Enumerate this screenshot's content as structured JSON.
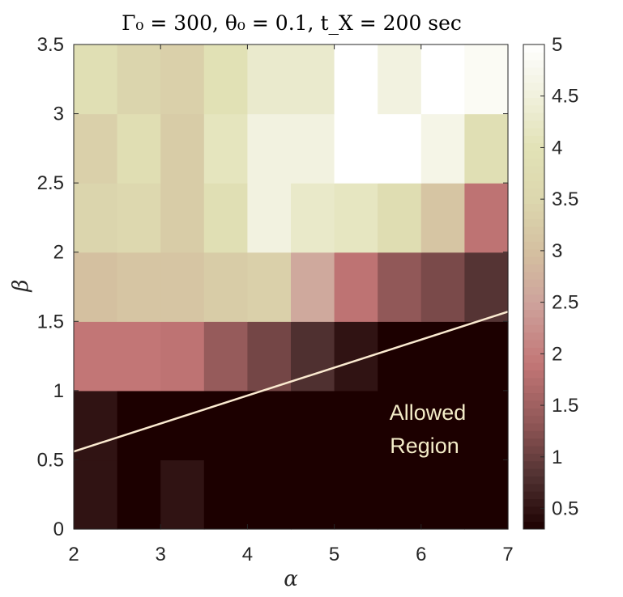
{
  "chart_data": {
    "type": "heatmap",
    "title": "Γ₀ = 300, θ₀ = 0.1, t_X = 200 sec",
    "xlabel": "α",
    "ylabel": "β",
    "xlim": [
      2,
      7
    ],
    "ylim": [
      0,
      3.5
    ],
    "x_ticks": [
      "2",
      "3",
      "4",
      "5",
      "6",
      "7"
    ],
    "y_ticks": [
      "0",
      "0.5",
      "1",
      "1.5",
      "2",
      "2.5",
      "3",
      "3.5"
    ],
    "x_centers": [
      2.25,
      2.75,
      3.25,
      3.75,
      4.25,
      4.75,
      5.25,
      5.75,
      6.25,
      6.75
    ],
    "row_edges": [
      0,
      0.5,
      1,
      1.5,
      2,
      2.5,
      3,
      3.5
    ],
    "values": [
      [
        0.5,
        0.3,
        0.5,
        0.3,
        0.3,
        0.3,
        0.3,
        0.3,
        0.3,
        0.3
      ],
      [
        0.5,
        0.3,
        0.3,
        0.3,
        0.3,
        0.3,
        0.3,
        0.3,
        0.3,
        0.3
      ],
      [
        1.9,
        1.9,
        1.85,
        1.4,
        1.1,
        0.8,
        0.5,
        0.3,
        0.3,
        0.3
      ],
      [
        3.0,
        3.1,
        3.1,
        3.25,
        3.35,
        2.6,
        1.85,
        1.35,
        1.15,
        0.85
      ],
      [
        3.45,
        3.55,
        3.25,
        3.85,
        4.55,
        4.25,
        4.15,
        3.75,
        3.1,
        1.85
      ],
      [
        3.35,
        3.8,
        3.25,
        4.1,
        4.55,
        4.55,
        5.0,
        5.0,
        4.65,
        3.85
      ],
      [
        3.85,
        3.45,
        3.35,
        3.95,
        4.3,
        4.3,
        5.0,
        4.55,
        5.0,
        4.85
      ]
    ],
    "colorbar": {
      "min": 0.3,
      "max": 5,
      "ticks": [
        "0.5",
        "1",
        "1.5",
        "2",
        "2.5",
        "3",
        "3.5",
        "4",
        "4.5",
        "5"
      ]
    },
    "lines": [
      {
        "name": "boundary",
        "x": [
          2,
          7
        ],
        "y": [
          0.56,
          1.57
        ],
        "color": "#fbead0"
      }
    ],
    "annotations": [
      "Allowed",
      "Region"
    ],
    "colors": {
      "colormap": [
        [
          0.3,
          "#1c0000"
        ],
        [
          0.8,
          "#4f3030"
        ],
        [
          1.3,
          "#8d5555"
        ],
        [
          1.9,
          "#c27676"
        ],
        [
          2.5,
          "#cea39c"
        ],
        [
          3.0,
          "#d4c0a0"
        ],
        [
          3.5,
          "#dcd7ae"
        ],
        [
          4.0,
          "#e2e2b6"
        ],
        [
          4.5,
          "#f0f0dc"
        ],
        [
          5.0,
          "#ffffff"
        ]
      ]
    }
  }
}
